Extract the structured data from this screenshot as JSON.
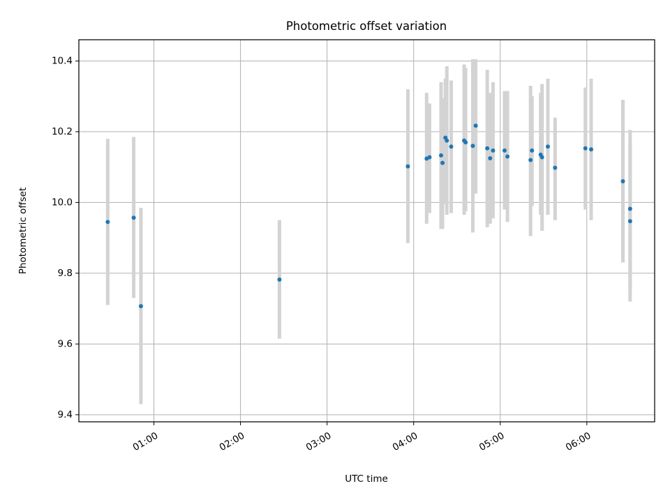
{
  "chart_data": {
    "type": "scatter",
    "title": "Photometric offset variation",
    "xlabel": "UTC time",
    "ylabel": "Photometric offset",
    "x_unit": "UTC time (HH:MM)",
    "xlim": [
      "00:08",
      "06:47"
    ],
    "ylim": [
      9.38,
      10.46
    ],
    "x_ticks": [
      "01:00",
      "02:00",
      "03:00",
      "04:00",
      "05:00",
      "06:00"
    ],
    "y_ticks": [
      9.4,
      9.6,
      9.8,
      10.0,
      10.2,
      10.4
    ],
    "y_tick_labels": [
      "9.4",
      "9.6",
      "9.8",
      "10.0",
      "10.2",
      "10.4"
    ],
    "grid": true,
    "legend": "none",
    "colors": {
      "marker": "#1f77b4",
      "errorbar": "#d3d3d3",
      "grid": "#b0b0b0",
      "axes": "#000000"
    },
    "series": [
      {
        "points": [
          {
            "x": "00:28",
            "y": 9.945,
            "y_lo": 9.71,
            "y_hi": 10.18
          },
          {
            "x": "00:46",
            "y": 9.957,
            "y_lo": 9.73,
            "y_hi": 10.185
          },
          {
            "x": "00:51",
            "y": 9.707,
            "y_lo": 9.43,
            "y_hi": 9.985
          },
          {
            "x": "02:27",
            "y": 9.782,
            "y_lo": 9.615,
            "y_hi": 9.95
          },
          {
            "x": "03:56",
            "y": 10.102,
            "y_lo": 9.885,
            "y_hi": 10.32
          },
          {
            "x": "04:09",
            "y": 10.124,
            "y_lo": 9.94,
            "y_hi": 10.31
          },
          {
            "x": "04:11",
            "y": 10.128,
            "y_lo": 9.97,
            "y_hi": 10.28
          },
          {
            "x": "04:19",
            "y": 10.133,
            "y_lo": 9.925,
            "y_hi": 10.34
          },
          {
            "x": "04:20",
            "y": 10.112,
            "y_lo": 9.925,
            "y_hi": 10.295
          },
          {
            "x": "04:22",
            "y": 10.183,
            "y_lo": 9.995,
            "y_hi": 10.35
          },
          {
            "x": "04:23",
            "y": 10.175,
            "y_lo": 9.965,
            "y_hi": 10.385
          },
          {
            "x": "04:26",
            "y": 10.158,
            "y_lo": 9.97,
            "y_hi": 10.345
          },
          {
            "x": "04:35",
            "y": 10.175,
            "y_lo": 9.965,
            "y_hi": 10.39
          },
          {
            "x": "04:36",
            "y": 10.17,
            "y_lo": 9.975,
            "y_hi": 10.38
          },
          {
            "x": "04:41",
            "y": 10.16,
            "y_lo": 9.915,
            "y_hi": 10.405
          },
          {
            "x": "04:43",
            "y": 10.217,
            "y_lo": 10.025,
            "y_hi": 10.405
          },
          {
            "x": "04:51",
            "y": 10.153,
            "y_lo": 9.93,
            "y_hi": 10.375
          },
          {
            "x": "04:53",
            "y": 10.125,
            "y_lo": 9.94,
            "y_hi": 10.31
          },
          {
            "x": "04:55",
            "y": 10.147,
            "y_lo": 9.955,
            "y_hi": 10.34
          },
          {
            "x": "05:03",
            "y": 10.147,
            "y_lo": 9.98,
            "y_hi": 10.315
          },
          {
            "x": "05:05",
            "y": 10.13,
            "y_lo": 9.945,
            "y_hi": 10.315
          },
          {
            "x": "05:21",
            "y": 10.12,
            "y_lo": 9.905,
            "y_hi": 10.33
          },
          {
            "x": "05:22",
            "y": 10.147,
            "y_lo": 9.99,
            "y_hi": 10.3
          },
          {
            "x": "05:28",
            "y": 10.135,
            "y_lo": 9.965,
            "y_hi": 10.31
          },
          {
            "x": "05:29",
            "y": 10.128,
            "y_lo": 9.92,
            "y_hi": 10.335
          },
          {
            "x": "05:33",
            "y": 10.158,
            "y_lo": 9.965,
            "y_hi": 10.35
          },
          {
            "x": "05:38",
            "y": 10.098,
            "y_lo": 9.95,
            "y_hi": 10.24
          },
          {
            "x": "05:59",
            "y": 10.153,
            "y_lo": 9.98,
            "y_hi": 10.325
          },
          {
            "x": "06:03",
            "y": 10.15,
            "y_lo": 9.95,
            "y_hi": 10.35
          },
          {
            "x": "06:25",
            "y": 10.06,
            "y_lo": 9.83,
            "y_hi": 10.29
          },
          {
            "x": "06:30",
            "y": 9.982,
            "y_lo": 9.75,
            "y_hi": 10.205
          },
          {
            "x": "06:30",
            "y": 9.947,
            "y_lo": 9.72,
            "y_hi": 10.17
          }
        ]
      }
    ]
  }
}
